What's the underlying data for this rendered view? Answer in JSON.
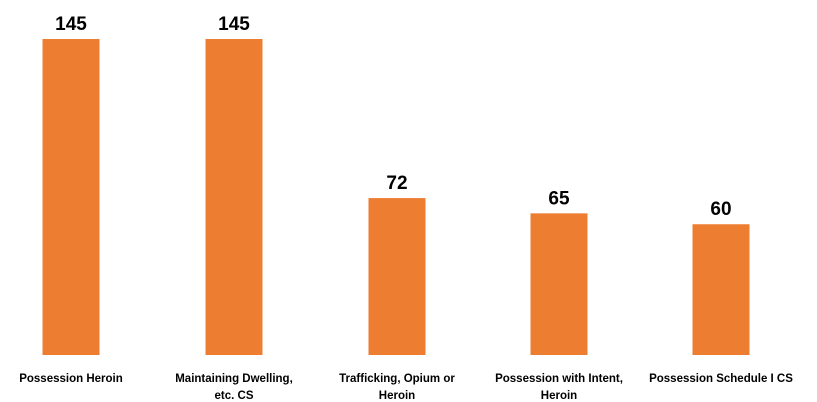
{
  "chart_data": {
    "type": "bar",
    "title": "",
    "xlabel": "",
    "ylabel": "",
    "categories": [
      [
        "Possession Heroin"
      ],
      [
        "Maintaining Dwelling,",
        "etc. CS"
      ],
      [
        "Trafficking, Opium or",
        "Heroin"
      ],
      [
        "Possession with Intent,",
        "Heroin"
      ],
      [
        "Possession Schedule I CS"
      ]
    ],
    "values": [
      145,
      145,
      72,
      65,
      60
    ],
    "data_labels": [
      "145",
      "145",
      "72",
      "65",
      "60"
    ],
    "ylim": [
      0,
      150
    ],
    "grid": false,
    "legend": "none",
    "bar_color": "#ED7D31"
  }
}
